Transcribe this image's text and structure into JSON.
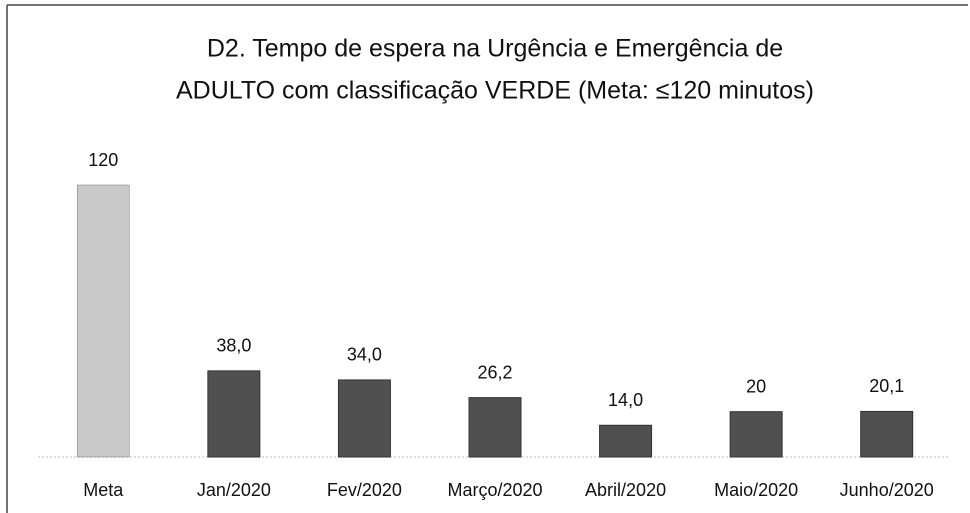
{
  "chart_data": {
    "type": "bar",
    "title": [
      "D2. Tempo de espera na Urgência e Emergência de",
      "ADULTO com classificação VERDE  (Meta: ≤120 minutos)"
    ],
    "categories": [
      "Meta",
      "Jan/2020",
      "Fev/2020",
      "Março/2020",
      "Abril/2020",
      "Maio/2020",
      "Junho/2020"
    ],
    "values": [
      120,
      38.0,
      34.0,
      26.2,
      14.0,
      20,
      20.1
    ],
    "value_labels": [
      "120",
      "38,0",
      "34,0",
      "26,2",
      "14,0",
      "20",
      "20,1"
    ],
    "colors": [
      "#cacaca",
      "#505050",
      "#505050",
      "#505050",
      "#505050",
      "#505050",
      "#505050"
    ]
  }
}
